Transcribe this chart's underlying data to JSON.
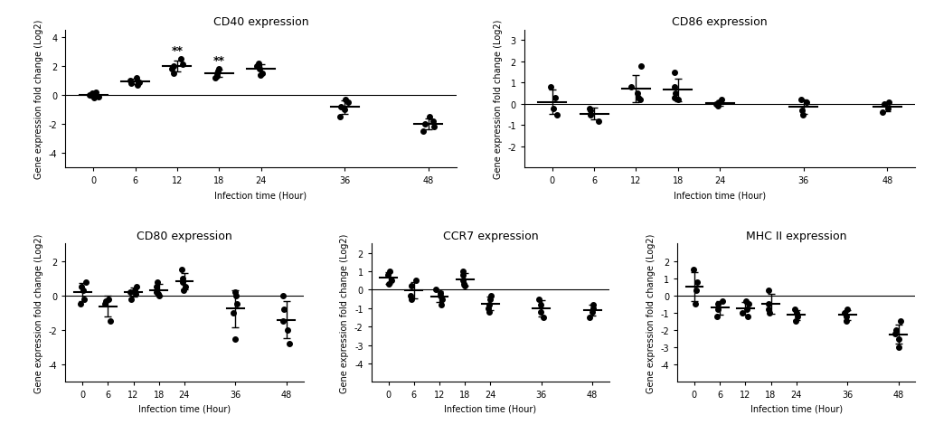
{
  "panels": [
    {
      "title": "CD40 expression",
      "ylim": [
        -5,
        4.5
      ],
      "yticks": [
        -4,
        -2,
        0,
        2,
        4
      ],
      "xlabel": "Infection time (Hour)",
      "ylabel": "Gene expression fold change (Log2)",
      "significance": {
        "12": "**",
        "18": "**"
      },
      "data": {
        "0": [
          0.1,
          -0.1,
          0.2,
          -0.2,
          0.0
        ],
        "6": [
          0.8,
          1.0,
          0.9,
          1.2,
          0.7
        ],
        "12": [
          1.8,
          2.1,
          2.5,
          2.0,
          1.5
        ],
        "18": [
          1.2,
          1.5,
          1.8,
          1.6,
          1.3
        ],
        "24": [
          1.5,
          2.0,
          2.2,
          1.8,
          1.4
        ],
        "36": [
          -0.5,
          -0.8,
          -1.0,
          -0.3,
          -1.5
        ],
        "48": [
          -1.5,
          -2.0,
          -2.5,
          -1.8,
          -2.2
        ]
      }
    },
    {
      "title": "CD86 expression",
      "ylim": [
        -3,
        3.5
      ],
      "yticks": [
        -2,
        -1,
        0,
        1,
        2,
        3
      ],
      "xlabel": "Infection time (Hour)",
      "ylabel": "Gene expression fold change (Log2)",
      "significance": {},
      "data": {
        "0": [
          0.8,
          -0.5,
          0.3,
          -0.2
        ],
        "6": [
          -0.3,
          -0.5,
          -0.2,
          -0.8
        ],
        "12": [
          0.5,
          0.3,
          0.8,
          1.8,
          0.2
        ],
        "18": [
          1.5,
          0.8,
          0.3,
          0.5,
          0.2
        ],
        "24": [
          0.1,
          -0.1,
          0.2,
          0.0
        ],
        "36": [
          0.2,
          -0.3,
          -0.5,
          0.1
        ],
        "48": [
          0.0,
          -0.2,
          0.1,
          -0.4
        ]
      }
    },
    {
      "title": "CD80 expression",
      "ylim": [
        -5,
        3
      ],
      "yticks": [
        -4,
        -2,
        0,
        2
      ],
      "xlabel": "Infection time (Hour)",
      "ylabel": "Gene expression fold change (Log2)",
      "significance": {},
      "data": {
        "0": [
          0.5,
          0.8,
          -0.2,
          0.3,
          -0.5
        ],
        "6": [
          -0.3,
          -0.5,
          -1.5,
          -0.2
        ],
        "12": [
          0.3,
          0.2,
          0.5,
          0.1,
          -0.2
        ],
        "18": [
          0.2,
          0.5,
          0.8,
          0.0,
          0.1
        ],
        "24": [
          1.0,
          0.5,
          1.5,
          0.8,
          0.3
        ],
        "36": [
          0.2,
          -0.5,
          -1.0,
          -2.5,
          0.0
        ],
        "48": [
          -1.5,
          -2.0,
          -0.8,
          0.0,
          -2.8
        ]
      }
    },
    {
      "title": "CCR7 expression",
      "ylim": [
        -5,
        2.5
      ],
      "yticks": [
        -4,
        -3,
        -2,
        -1,
        0,
        1,
        2
      ],
      "xlabel": "Infection time (Hour)",
      "ylabel": "Gene expression fold change (Log2)",
      "significance": {},
      "data": {
        "0": [
          0.8,
          0.5,
          1.0,
          0.3
        ],
        "6": [
          0.2,
          -0.5,
          -0.3,
          0.5
        ],
        "12": [
          -0.3,
          -0.2,
          0.0,
          -0.5,
          -0.8
        ],
        "18": [
          1.0,
          0.8,
          0.5,
          0.3,
          0.2
        ],
        "24": [
          -0.5,
          -0.8,
          -0.3,
          -1.0,
          -1.2
        ],
        "36": [
          -0.8,
          -1.2,
          -1.5,
          -0.5
        ],
        "48": [
          -1.2,
          -1.0,
          -1.5,
          -0.8
        ]
      }
    },
    {
      "title": "MHC II expression",
      "ylim": [
        -5,
        3
      ],
      "yticks": [
        -4,
        -3,
        -2,
        -1,
        0,
        1,
        2
      ],
      "xlabel": "Infection time (Hour)",
      "ylabel": "Gene expression fold change (Log2)",
      "significance": {},
      "data": {
        "0": [
          1.5,
          0.8,
          0.3,
          -0.5
        ],
        "6": [
          -0.5,
          -0.8,
          -1.2,
          -0.3
        ],
        "12": [
          -0.3,
          -0.8,
          -1.0,
          -0.5,
          -1.2
        ],
        "18": [
          0.3,
          -0.5,
          -0.8,
          -1.0
        ],
        "24": [
          -1.0,
          -1.5,
          -0.8,
          -1.2
        ],
        "36": [
          -1.0,
          -1.2,
          -1.5,
          -0.8
        ],
        "48": [
          -1.5,
          -2.0,
          -2.5,
          -3.0,
          -2.2
        ]
      }
    }
  ],
  "xticks": [
    0,
    6,
    12,
    18,
    24,
    36,
    48
  ],
  "marker_color": "black",
  "mean_line_color": "black",
  "error_bar_color": "black",
  "marker_size": 4,
  "line_color": "black"
}
